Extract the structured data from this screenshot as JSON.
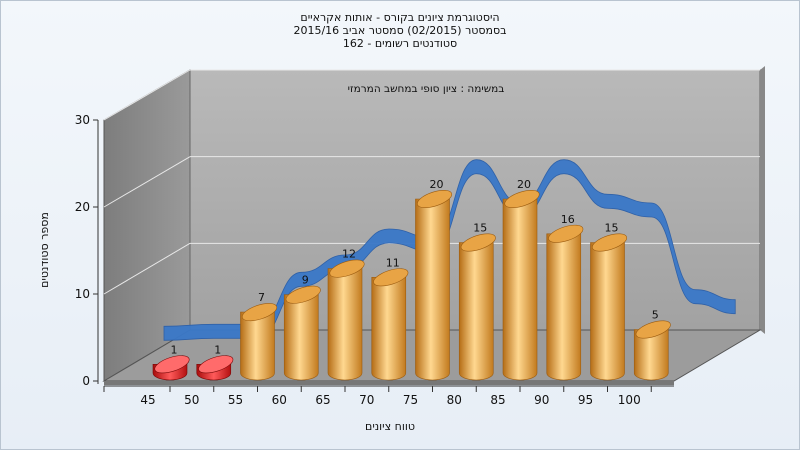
{
  "title_lines": [
    "היסטוגרמת ציונים בקורס - אותות אקראיים",
    "בסמסטר  (02/2015)  סמסטר אביב 2015/16",
    "סטודנטים רשומים - 162"
  ],
  "chart_data": {
    "type": "bar",
    "subtitle": "במשימה : ציון סופי במחשב המרמזי",
    "xlabel": "טווח ציונים",
    "ylabel": "מספר סטודנטים",
    "categories": [
      "45",
      "50",
      "55",
      "60",
      "65",
      "70",
      "75",
      "80",
      "85",
      "90",
      "95",
      "100"
    ],
    "values": [
      1,
      1,
      7,
      9,
      12,
      11,
      20,
      15,
      20,
      16,
      15,
      5
    ],
    "y_ticks": [
      0,
      10,
      20,
      30
    ],
    "ylim": [
      0,
      30
    ],
    "grid": true,
    "trend_line": true,
    "colors": {
      "bar_gold": "#e8a445",
      "bar_gold_light": "#ffd890",
      "bar_gold_dark": "#b06a14",
      "bar_low": "#d42020",
      "trend": "#3a78c8",
      "back_wall": "#a8a8a8",
      "side_wall": "#8a8a8a",
      "floor": "#a0a0a0"
    }
  }
}
